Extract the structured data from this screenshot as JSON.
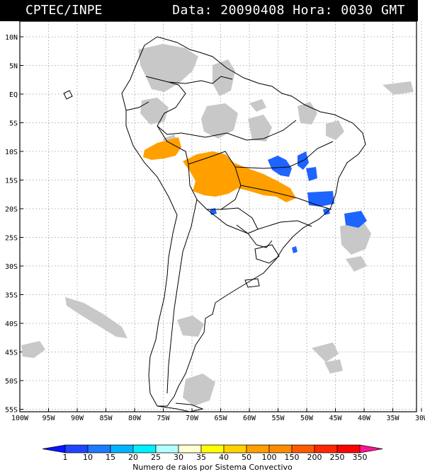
{
  "header": {
    "source": "CPTEC/INPE",
    "stamp": "Data: 20090408 Hora: 0030 GMT"
  },
  "axes": {
    "lat_labels": [
      "10N",
      "5N",
      "EQ",
      "5S",
      "10S",
      "15S",
      "20S",
      "25S",
      "30S",
      "35S",
      "40S",
      "45S",
      "50S",
      "55S"
    ],
    "lon_labels": [
      "100W",
      "95W",
      "90W",
      "85W",
      "80W",
      "75W",
      "70W",
      "65W",
      "60W",
      "55W",
      "50W",
      "45W",
      "40W",
      "35W",
      "30W"
    ]
  },
  "colorbar": {
    "title": "Numero de raios por Sistema Convectivo",
    "ticks": [
      "1",
      "10",
      "15",
      "20",
      "25",
      "30",
      "35",
      "40",
      "50",
      "100",
      "150",
      "200",
      "250",
      "350"
    ],
    "colors": [
      "#0a14ff",
      "#1e46ff",
      "#1e7aff",
      "#00b4ff",
      "#00f0ff",
      "#b4ffff",
      "#ffffd2",
      "#ffff00",
      "#ffd200",
      "#ffa000",
      "#ff8c00",
      "#ff5a00",
      "#ff2800",
      "#ff0000",
      "#ff1493"
    ]
  },
  "colors": {
    "coast": "#000000",
    "cloud": "#c8c8c8",
    "cloud_dark": "#a8a8a8",
    "lightning_orange": "#ffa000",
    "lightning_blue": "#1e64ff"
  }
}
